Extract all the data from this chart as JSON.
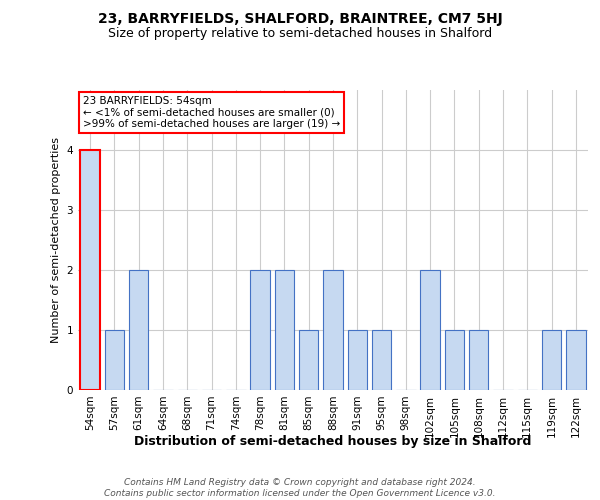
{
  "title": "23, BARRYFIELDS, SHALFORD, BRAINTREE, CM7 5HJ",
  "subtitle": "Size of property relative to semi-detached houses in Shalford",
  "xlabel": "Distribution of semi-detached houses by size in Shalford",
  "ylabel": "Number of semi-detached properties",
  "footer": "Contains HM Land Registry data © Crown copyright and database right 2024.\nContains public sector information licensed under the Open Government Licence v3.0.",
  "categories": [
    "54sqm",
    "57sqm",
    "61sqm",
    "64sqm",
    "68sqm",
    "71sqm",
    "74sqm",
    "78sqm",
    "81sqm",
    "85sqm",
    "88sqm",
    "91sqm",
    "95sqm",
    "98sqm",
    "102sqm",
    "105sqm",
    "108sqm",
    "112sqm",
    "115sqm",
    "119sqm",
    "122sqm"
  ],
  "values": [
    4,
    1,
    2,
    0,
    0,
    0,
    0,
    2,
    2,
    1,
    2,
    1,
    1,
    0,
    2,
    1,
    1,
    0,
    0,
    1,
    1
  ],
  "bar_color": "#c6d9f1",
  "bar_edge_color": "#4472c4",
  "highlight_index": 0,
  "highlight_edge_color": "#ff0000",
  "annotation_text": "23 BARRYFIELDS: 54sqm\n← <1% of semi-detached houses are smaller (0)\n>99% of semi-detached houses are larger (19) →",
  "annotation_box_color": "#ffffff",
  "annotation_edge_color": "#ff0000",
  "ylim": [
    0,
    5
  ],
  "yticks": [
    0,
    1,
    2,
    3,
    4
  ],
  "grid_color": "#cccccc",
  "bg_color": "#ffffff",
  "title_fontsize": 10,
  "subtitle_fontsize": 9,
  "xlabel_fontsize": 9,
  "ylabel_fontsize": 8,
  "tick_fontsize": 7.5,
  "footer_fontsize": 6.5
}
